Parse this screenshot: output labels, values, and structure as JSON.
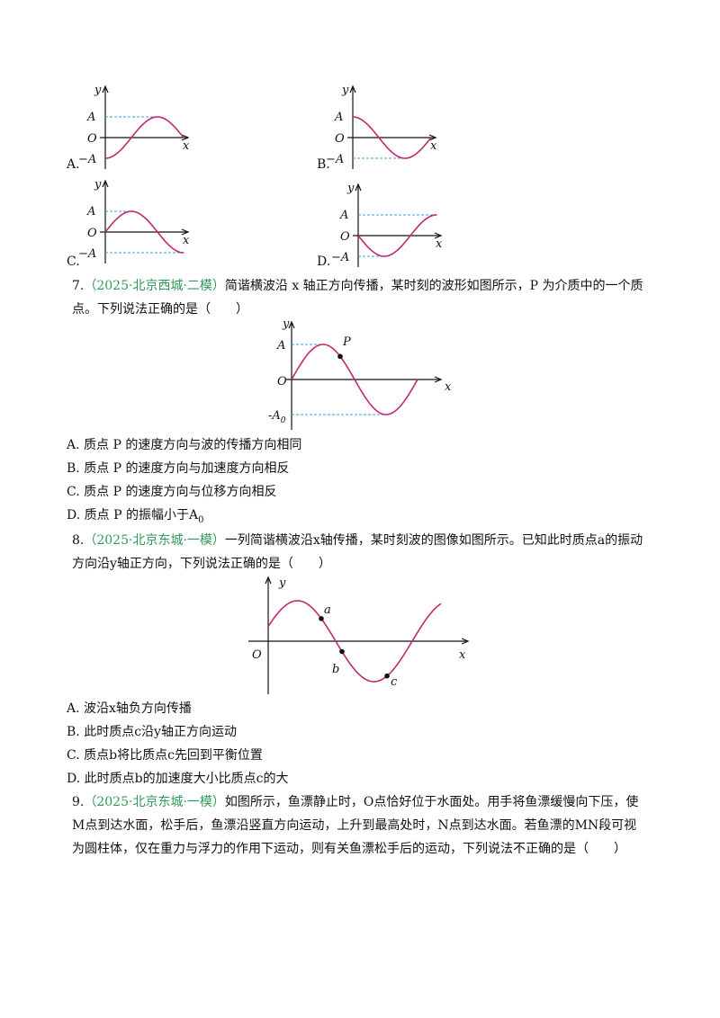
{
  "q6_options": [
    {
      "letter": "A.",
      "labels": {
        "y": "y",
        "a": "A",
        "o": "O",
        "neg_a": "−A",
        "x": "x"
      }
    },
    {
      "letter": "B.",
      "labels": {
        "y": "y",
        "a": "A",
        "o": "O",
        "neg_a": "−A",
        "x": "x"
      }
    },
    {
      "letter": "C.",
      "labels": {
        "y": "y",
        "a": "A",
        "o": "O",
        "neg_a": "−A",
        "x": "x"
      }
    },
    {
      "letter": "D.",
      "labels": {
        "y": "y",
        "a": "A",
        "o": "O",
        "neg_a": "−A",
        "x": "x"
      }
    }
  ],
  "q7": {
    "number": "7.",
    "source": "（2025·北京西城·二模）",
    "stem": "简谐横波沿 x 轴正方向传播，某时刻的波形如图所示，P 为介质中的一个质点。下列说法正确的是（　　）",
    "figure": {
      "y": "y",
      "a": "A",
      "p": "P",
      "o": "O",
      "x": "x",
      "neg_a": "-A",
      "neg_a_sub": "0"
    },
    "options": [
      {
        "letter": "A.",
        "text": "质点 P 的速度方向与波的传播方向相同"
      },
      {
        "letter": "B.",
        "text": "质点 P 的速度方向与加速度方向相反"
      },
      {
        "letter": "C.",
        "text": "质点 P 的速度方向与位移方向相反"
      },
      {
        "letter": "D.",
        "text": "质点 P 的振幅小于A",
        "sub": "0"
      }
    ]
  },
  "q8": {
    "number": "8.",
    "source": "（2025·北京东城·一模）",
    "stem": "一列简谐横波沿x轴传播，某时刻波的图像如图所示。已知此时质点a的振动方向沿y轴正方向，下列说法正确的是（　　）",
    "figure": {
      "y": "y",
      "a": "a",
      "o": "O",
      "b": "b",
      "c": "c",
      "x": "x"
    },
    "options": [
      {
        "letter": "A.",
        "text": "波沿x轴负方向传播"
      },
      {
        "letter": "B.",
        "text": "此时质点c沿y轴正方向运动"
      },
      {
        "letter": "C.",
        "text": "质点b将比质点c先回到平衡位置"
      },
      {
        "letter": "D.",
        "text": "此时质点b的加速度大小比质点c的大"
      }
    ]
  },
  "q9": {
    "number": "9.",
    "source": "（2025·北京东城·一模）",
    "stem": "如图所示，鱼漂静止时，O点恰好位于水面处。用手将鱼漂缓慢向下压，使M点到达水面，松手后，鱼漂沿竖直方向运动，上升到最高处时，N点到达水面。若鱼漂的MN段可视为圆柱体，仅在重力与浮力的作用下运动，则有关鱼漂松手后的运动，下列说法不正确的是（　　）"
  }
}
